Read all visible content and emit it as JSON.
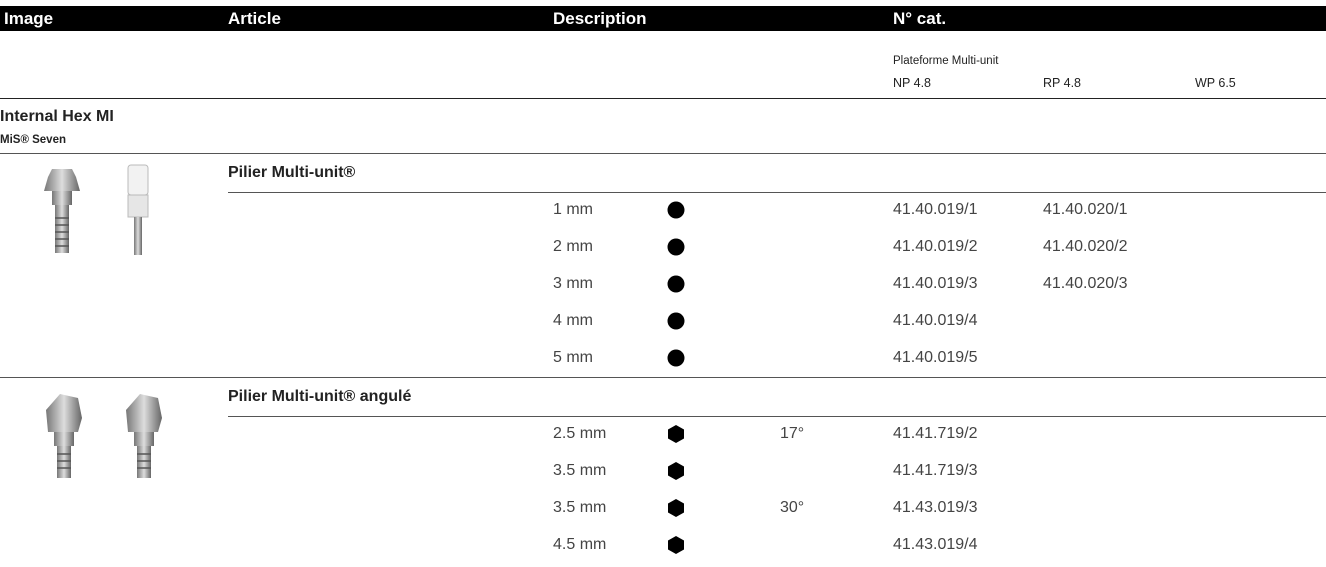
{
  "header": {
    "columns": [
      "Image",
      "Article",
      "Description",
      "N° cat."
    ]
  },
  "subheader": {
    "platform": "Plateforme Multi-unit",
    "sizes": [
      "NP 4.8",
      "RP 4.8",
      "WP 6.5"
    ]
  },
  "group": {
    "title": "Internal Hex MI",
    "subtitle": "MiS® Seven"
  },
  "articles": [
    {
      "name": "Pilier Multi-unit®",
      "symbol": "circle",
      "rows": [
        {
          "height": "1 mm",
          "catalog": [
            "41.40.019/1",
            "41.40.020/1"
          ]
        },
        {
          "height": "2 mm",
          "catalog": [
            "41.40.019/2",
            "41.40.020/2"
          ]
        },
        {
          "height": "3 mm",
          "catalog": [
            "41.40.019/3",
            "41.40.020/3"
          ]
        },
        {
          "height": "4 mm",
          "catalog": [
            "41.40.019/4"
          ]
        },
        {
          "height": "5 mm",
          "catalog": [
            "41.40.019/5"
          ]
        }
      ]
    },
    {
      "name": "Pilier Multi-unit® angulé",
      "symbol": "hexagon",
      "rows": [
        {
          "height": "2.5 mm",
          "angle": "17°",
          "catalog": [
            "41.41.719/2"
          ]
        },
        {
          "height": "3.5 mm",
          "catalog": [
            "41.41.719/3"
          ]
        },
        {
          "height": "3.5 mm",
          "angle": "30°",
          "catalog": [
            "41.43.019/3"
          ]
        },
        {
          "height": "4.5 mm",
          "catalog": [
            "41.43.019/4"
          ]
        }
      ]
    }
  ]
}
